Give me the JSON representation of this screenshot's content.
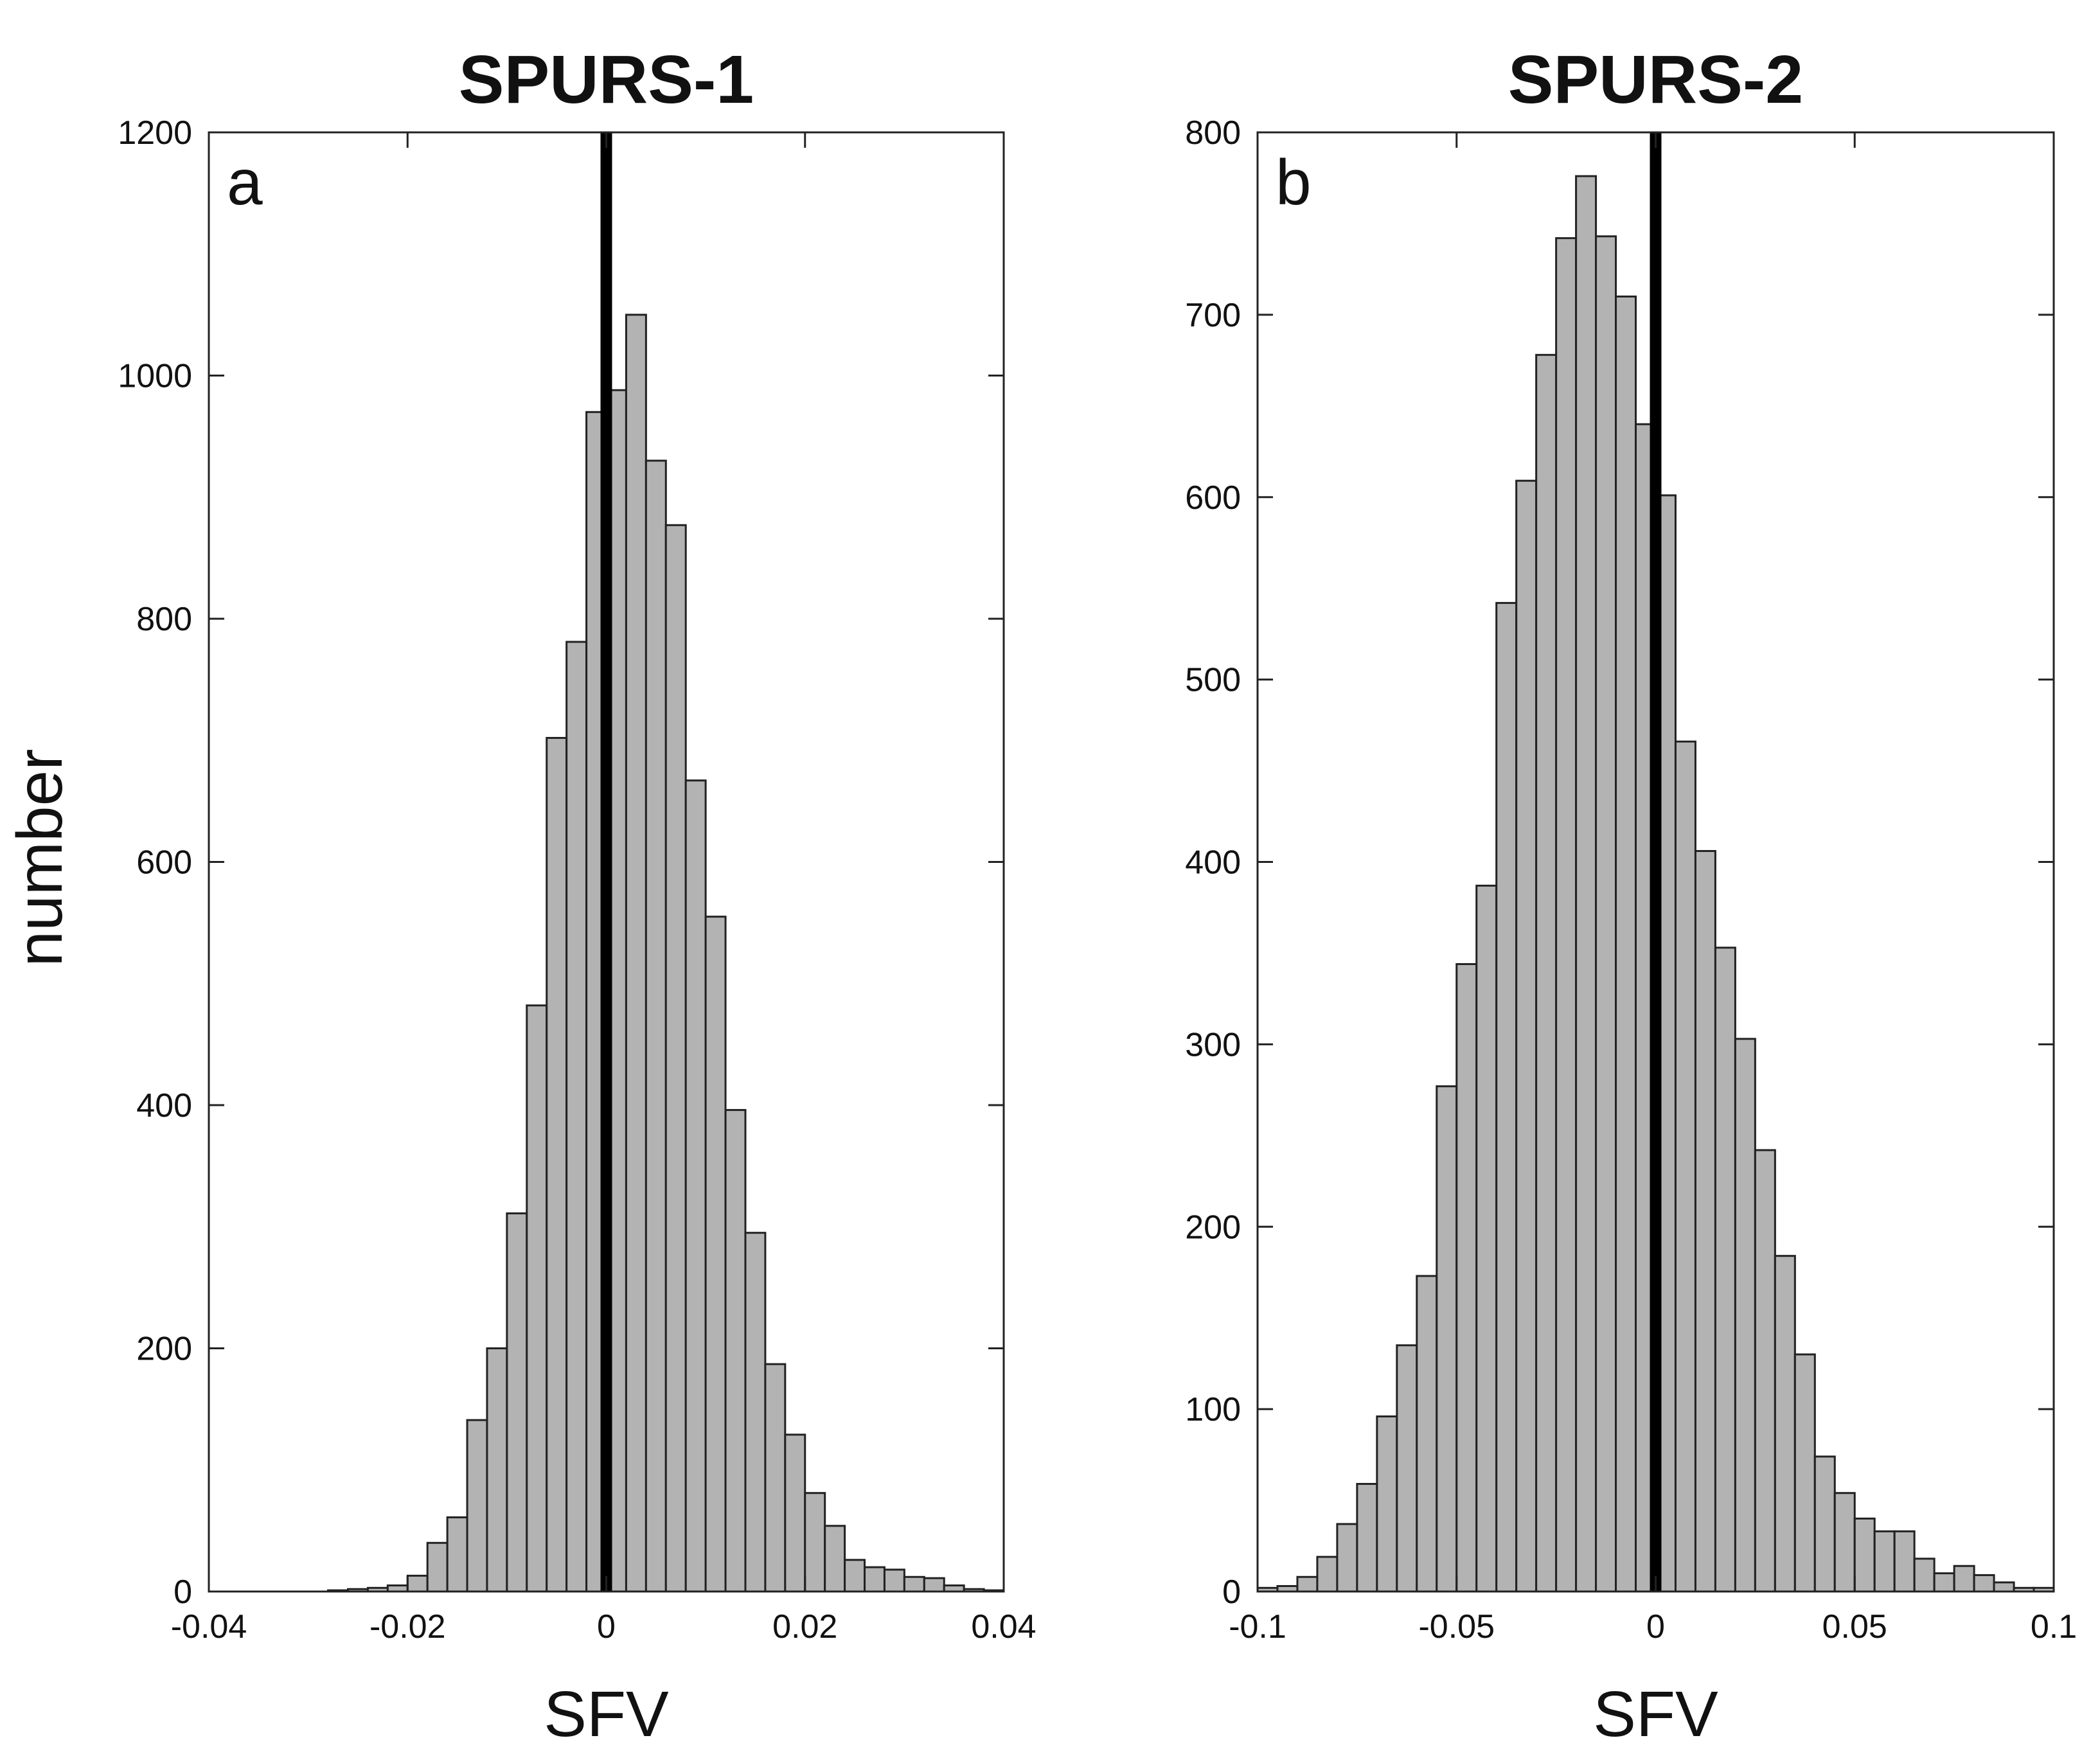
{
  "chart_data": [
    {
      "type": "bar",
      "title": "SPURS-1",
      "panel_label": "a",
      "xlabel": "SFV",
      "ylabel": "number",
      "xlim": [
        -0.04,
        0.04
      ],
      "ylim": [
        0,
        1200
      ],
      "xticks": [
        "-0.04",
        "-0.02",
        "0",
        "0.02",
        "0.04"
      ],
      "xtick_values": [
        -0.04,
        -0.02,
        0,
        0.02,
        0.04
      ],
      "yticks": [
        "0",
        "200",
        "400",
        "600",
        "800",
        "1000",
        "1200"
      ],
      "ytick_values": [
        0,
        200,
        400,
        600,
        800,
        1000,
        1200
      ],
      "bin_start": -0.04,
      "bin_width": 0.002,
      "values": [
        0,
        0,
        0,
        0,
        0,
        0,
        1,
        2,
        3,
        5,
        13,
        40,
        61,
        141,
        200,
        311,
        482,
        702,
        781,
        970,
        988,
        1050,
        930,
        877,
        667,
        555,
        396,
        295,
        187,
        129,
        81,
        54,
        26,
        20,
        18,
        12,
        11,
        5,
        2,
        1
      ],
      "vline_x": 0,
      "bar_color": "#b3b3b3",
      "line_color": "#000000",
      "grid": false
    },
    {
      "type": "bar",
      "title": "SPURS-2",
      "panel_label": "b",
      "xlabel": "SFV",
      "ylabel": "",
      "xlim": [
        -0.1,
        0.1
      ],
      "ylim": [
        0,
        800
      ],
      "xticks": [
        "-0.1",
        "-0.05",
        "0",
        "0.05",
        "0.1"
      ],
      "xtick_values": [
        -0.1,
        -0.05,
        0,
        0.05,
        0.1
      ],
      "yticks": [
        "0",
        "100",
        "200",
        "300",
        "400",
        "500",
        "600",
        "700",
        "800"
      ],
      "ytick_values": [
        0,
        100,
        200,
        300,
        400,
        500,
        600,
        700,
        800
      ],
      "bin_start": -0.1,
      "bin_width": 0.005,
      "values": [
        2,
        3,
        8,
        19,
        37,
        59,
        96,
        135,
        173,
        277,
        344,
        387,
        542,
        609,
        678,
        742,
        776,
        743,
        710,
        640,
        601,
        466,
        406,
        353,
        303,
        242,
        184,
        130,
        74,
        54,
        40,
        33,
        33,
        18,
        10,
        14,
        9,
        5,
        2,
        2
      ],
      "vline_x": 0,
      "bar_color": "#b3b3b3",
      "line_color": "#000000",
      "grid": false
    }
  ]
}
